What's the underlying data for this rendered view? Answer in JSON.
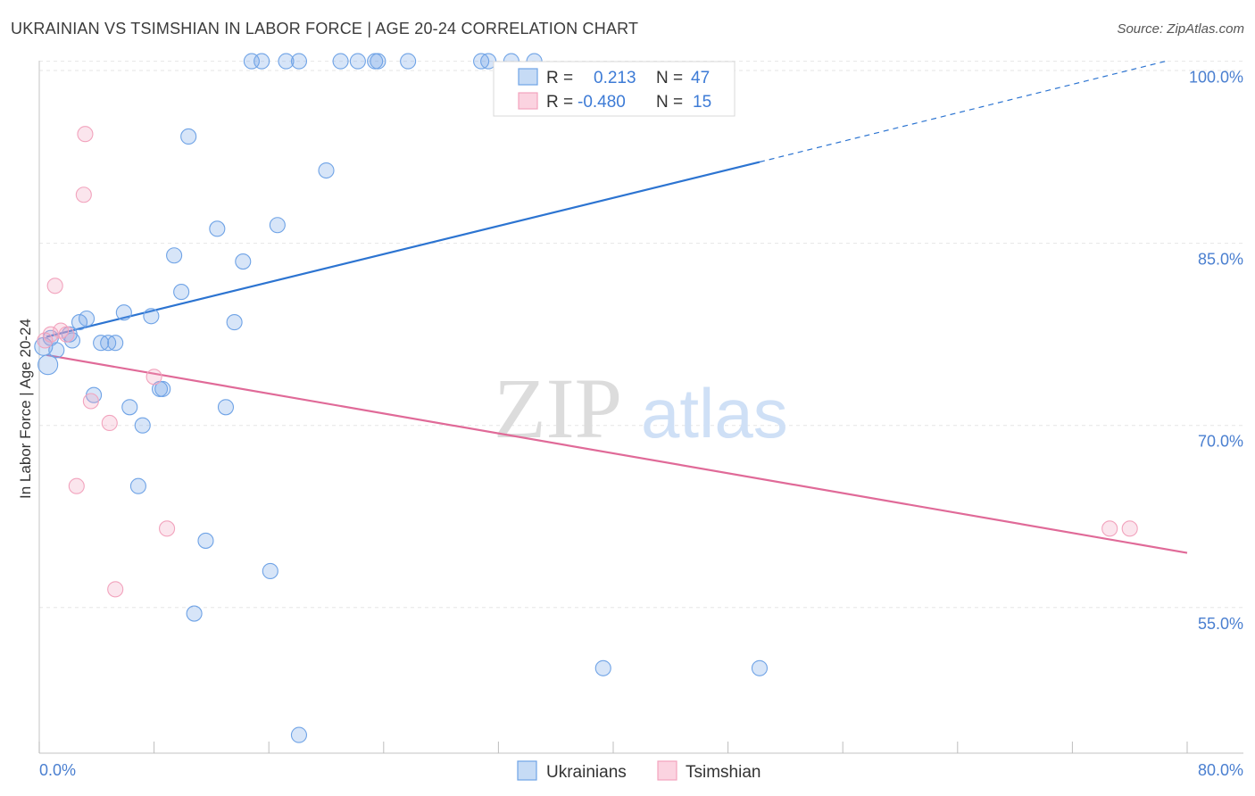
{
  "title": "UKRAINIAN VS TSIMSHIAN IN LABOR FORCE | AGE 20-24 CORRELATION CHART",
  "source": "Source: ZipAtlas.com",
  "chart_data": {
    "type": "scatter",
    "title": "UKRAINIAN VS TSIMSHIAN IN LABOR FORCE | AGE 20-24 CORRELATION CHART",
    "xlabel": "",
    "ylabel": "In Labor Force | Age 20-24",
    "xlim": [
      0,
      80
    ],
    "ylim": [
      43,
      101
    ],
    "x_tick_labels": [
      "0.0%",
      "80.0%"
    ],
    "y_ticks": [
      55,
      70,
      85,
      100
    ],
    "y_tick_labels": [
      "55.0%",
      "70.0%",
      "85.0%",
      "100.0%"
    ],
    "grid": true,
    "legend_position": "bottom",
    "watermark": {
      "part1": "ZIP",
      "part2": "atlas"
    },
    "colors": {
      "Ukrainians": "#6fa3e6",
      "Tsimshian": "#f2a3bd",
      "ukr_line": "#2c74d1",
      "tsi_line": "#e06a98"
    },
    "stats": [
      {
        "series": "Ukrainians",
        "r_label": "R =",
        "r": "0.213",
        "n_label": "N =",
        "n": "47"
      },
      {
        "series": "Tsimshian",
        "r_label": "R =",
        "r": "-0.480",
        "n_label": "N =",
        "n": "15"
      }
    ],
    "series": [
      {
        "name": "Ukrainians",
        "points": [
          [
            0.3,
            76.5
          ],
          [
            0.6,
            75
          ],
          [
            1.2,
            76.2
          ],
          [
            2.1,
            77.5
          ],
          [
            2.3,
            77
          ],
          [
            2.8,
            78.5
          ],
          [
            3.3,
            78.8
          ],
          [
            3.8,
            72.5
          ],
          [
            4.3,
            76.8
          ],
          [
            4.8,
            76.8
          ],
          [
            5.3,
            76.8
          ],
          [
            5.9,
            79.3
          ],
          [
            6.3,
            71.5
          ],
          [
            6.9,
            65
          ],
          [
            7.2,
            70
          ],
          [
            7.8,
            79
          ],
          [
            8.4,
            73
          ],
          [
            8.6,
            73
          ],
          [
            9.4,
            84
          ],
          [
            9.9,
            81
          ],
          [
            10.4,
            93.8
          ],
          [
            10.8,
            54.5
          ],
          [
            11.6,
            60.5
          ],
          [
            12.4,
            86.2
          ],
          [
            13.0,
            71.5
          ],
          [
            13.6,
            78.5
          ],
          [
            14.2,
            83.5
          ],
          [
            14.8,
            100
          ],
          [
            15.5,
            100
          ],
          [
            16.1,
            58
          ],
          [
            16.6,
            86.5
          ],
          [
            17.2,
            100
          ],
          [
            18.1,
            100
          ],
          [
            18.1,
            44.5
          ],
          [
            20.0,
            91
          ],
          [
            21.0,
            100
          ],
          [
            22.2,
            100
          ],
          [
            23.4,
            100
          ],
          [
            23.6,
            100
          ],
          [
            25.7,
            100
          ],
          [
            30.8,
            100
          ],
          [
            31.3,
            100
          ],
          [
            32.9,
            100
          ],
          [
            34.5,
            100
          ],
          [
            39.3,
            50
          ],
          [
            50.2,
            50
          ],
          [
            0.8,
            77.2
          ]
        ]
      },
      {
        "name": "Tsimshian",
        "points": [
          [
            0.4,
            77
          ],
          [
            0.8,
            77.5
          ],
          [
            1.1,
            81.5
          ],
          [
            1.5,
            77.8
          ],
          [
            1.9,
            77.5
          ],
          [
            2.6,
            65
          ],
          [
            3.2,
            94
          ],
          [
            3.1,
            89
          ],
          [
            3.6,
            72
          ],
          [
            4.9,
            70.2
          ],
          [
            5.3,
            56.5
          ],
          [
            8.0,
            74
          ],
          [
            8.9,
            61.5
          ],
          [
            74.6,
            61.5
          ],
          [
            76.0,
            61.5
          ]
        ]
      }
    ],
    "trend_lines": [
      {
        "series": "Ukrainians",
        "solid": [
          [
            0.5,
            77.3
          ],
          [
            50.2,
            91.7
          ]
        ],
        "dashed": [
          [
            50.2,
            91.7
          ],
          [
            78.5,
            100
          ]
        ]
      },
      {
        "series": "Tsimshian",
        "solid": [
          [
            0.5,
            75.8
          ],
          [
            80,
            59.5
          ]
        ]
      }
    ]
  }
}
